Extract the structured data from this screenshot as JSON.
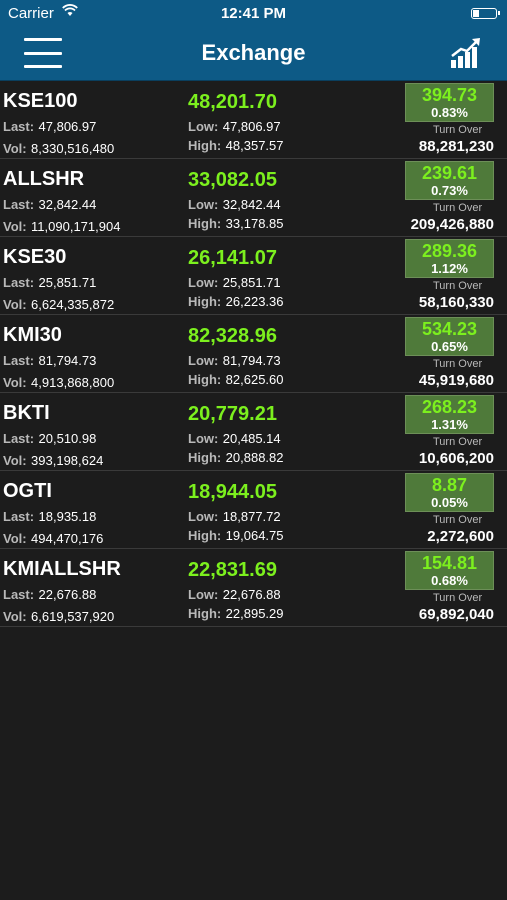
{
  "status": {
    "carrier": "Carrier",
    "time": "12:41 PM"
  },
  "nav": {
    "title": "Exchange"
  },
  "labels": {
    "last": "Last:",
    "vol": "Vol:",
    "low": "Low:",
    "high": "High:",
    "turnover": "Turn Over"
  },
  "rows": [
    {
      "name": "KSE100",
      "index": "48,201.70",
      "last": "47,806.97",
      "vol": "8,330,516,480",
      "low": "47,806.97",
      "high": "48,357.57",
      "change": "394.73",
      "pct": "0.83%",
      "turnover": "88,281,230"
    },
    {
      "name": "ALLSHR",
      "index": "33,082.05",
      "last": "32,842.44",
      "vol": "11,090,171,904",
      "low": "32,842.44",
      "high": "33,178.85",
      "change": "239.61",
      "pct": "0.73%",
      "turnover": "209,426,880"
    },
    {
      "name": "KSE30",
      "index": "26,141.07",
      "last": "25,851.71",
      "vol": "6,624,335,872",
      "low": "25,851.71",
      "high": "26,223.36",
      "change": "289.36",
      "pct": "1.12%",
      "turnover": "58,160,330"
    },
    {
      "name": "KMI30",
      "index": "82,328.96",
      "last": "81,794.73",
      "vol": "4,913,868,800",
      "low": "81,794.73",
      "high": "82,625.60",
      "change": "534.23",
      "pct": "0.65%",
      "turnover": "45,919,680"
    },
    {
      "name": "BKTI",
      "index": "20,779.21",
      "last": "20,510.98",
      "vol": "393,198,624",
      "low": "20,485.14",
      "high": "20,888.82",
      "change": "268.23",
      "pct": "1.31%",
      "turnover": "10,606,200"
    },
    {
      "name": "OGTI",
      "index": "18,944.05",
      "last": "18,935.18",
      "vol": "494,470,176",
      "low": "18,877.72",
      "high": "19,064.75",
      "change": "8.87",
      "pct": "0.05%",
      "turnover": "2,272,600"
    },
    {
      "name": "KMIALLSHR",
      "index": "22,831.69",
      "last": "22,676.88",
      "vol": "6,619,537,920",
      "low": "22,676.88",
      "high": "22,895.29",
      "change": "154.81",
      "pct": "0.68%",
      "turnover": "69,892,040"
    }
  ]
}
